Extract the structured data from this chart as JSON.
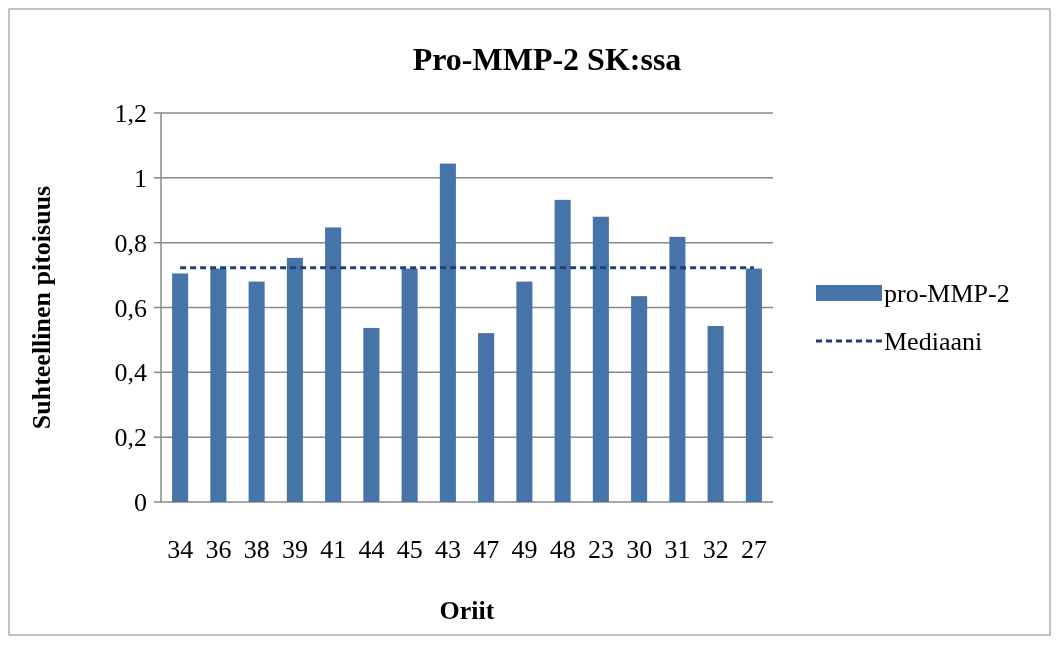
{
  "chart_data": {
    "type": "bar",
    "title": "Pro-MMP-2 SK:ssa",
    "xlabel": "Oriit",
    "ylabel": "Suhteellinen pitoisuus",
    "categories": [
      "34",
      "36",
      "38",
      "39",
      "41",
      "44",
      "45",
      "43",
      "47",
      "49",
      "48",
      "23",
      "30",
      "31",
      "32",
      "27"
    ],
    "series": [
      {
        "name": "pro-MMP-2",
        "color": "#4674a8",
        "values": [
          0.705,
          0.72,
          0.68,
          0.753,
          0.847,
          0.537,
          0.72,
          1.044,
          0.521,
          0.68,
          0.932,
          0.88,
          0.635,
          0.818,
          0.543,
          0.72
        ]
      },
      {
        "name": "Mediaani",
        "type": "line",
        "line_style": "dashed",
        "color": "#1f3f73",
        "values": [
          0.723,
          0.723,
          0.723,
          0.723,
          0.723,
          0.723,
          0.723,
          0.723,
          0.723,
          0.723,
          0.723,
          0.723,
          0.723,
          0.723,
          0.723,
          0.723
        ]
      }
    ],
    "ylim": [
      0,
      1.2
    ],
    "yticks": [
      {
        "value": 0,
        "label": "0"
      },
      {
        "value": 0.2,
        "label": "0,2"
      },
      {
        "value": 0.4,
        "label": "0,4"
      },
      {
        "value": 0.6,
        "label": "0,6"
      },
      {
        "value": 0.8,
        "label": "0,8"
      },
      {
        "value": 1,
        "label": "1"
      },
      {
        "value": 1.2,
        "label": "1,2"
      }
    ],
    "grid": "y",
    "legend": "right"
  }
}
